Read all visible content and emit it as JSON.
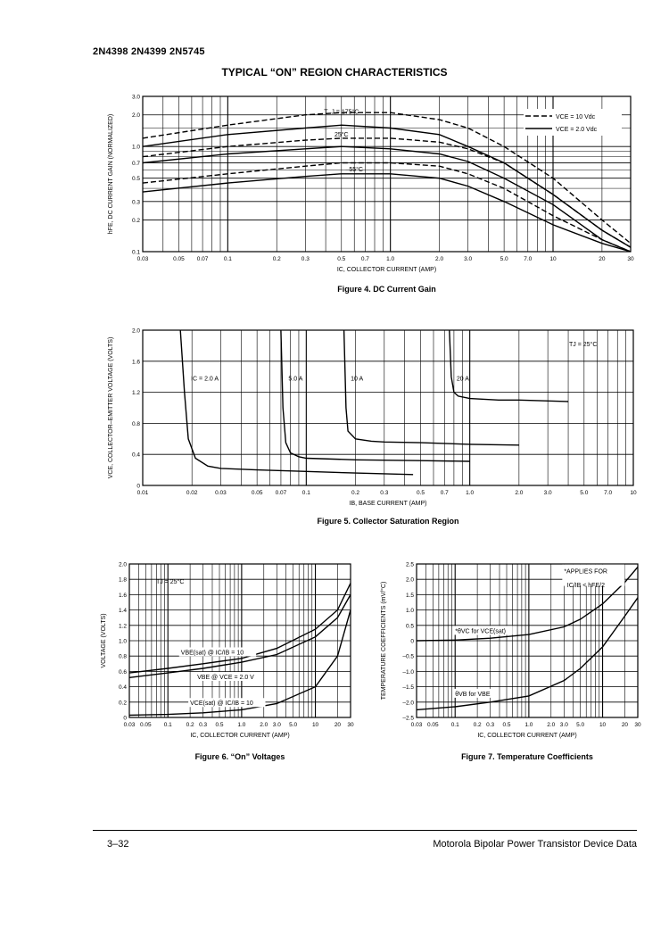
{
  "header": {
    "part_numbers": "2N4398 2N4399 2N5745"
  },
  "section_title": "TYPICAL “ON” REGION CHARACTERISTICS",
  "footer": {
    "page": "3–32",
    "publisher": "Motorola Bipolar Power Transistor Device Data"
  },
  "chart_data": [
    {
      "id": "fig4",
      "type": "line",
      "caption": "Figure 4. DC Current Gain",
      "xlabel": "I_C, COLLECTOR CURRENT (AMP)",
      "ylabel": "h_FE, DC CURRENT GAIN (NORMALIZED)",
      "xscale": "log",
      "yscale": "log",
      "xlim": [
        0.03,
        30
      ],
      "ylim": [
        0.1,
        3.0
      ],
      "xticks": [
        "0.03",
        "0.05",
        "0.07",
        "0.1",
        "0.2",
        "0.3",
        "0.5",
        "0.7",
        "1.0",
        "2.0",
        "3.0",
        "5.0",
        "7.0",
        "10",
        "20",
        "30"
      ],
      "yticks": [
        "0.1",
        "0.2",
        "0.3",
        "0.5",
        "0.7",
        "1.0",
        "2.0",
        "3.0"
      ],
      "legend": [
        "V_CE = 10 Vdc",
        "V_CE = 2.0 Vdc"
      ],
      "annotations": [
        "T_J = 175°C",
        "25°C",
        "–55°C"
      ],
      "series": [
        {
          "name": "T_J = 175°C, V_CE = 10 Vdc",
          "dash": true,
          "x": [
            0.03,
            0.1,
            0.3,
            0.5,
            1,
            2,
            3,
            5,
            10,
            20,
            30
          ],
          "y": [
            1.2,
            1.6,
            2.0,
            2.1,
            2.1,
            1.8,
            1.5,
            1.0,
            0.5,
            0.2,
            0.12
          ]
        },
        {
          "name": "T_J = 175°C, V_CE = 2.0 Vdc",
          "dash": false,
          "x": [
            0.03,
            0.1,
            0.3,
            0.5,
            1,
            2,
            3,
            5,
            10,
            20,
            30
          ],
          "y": [
            1.0,
            1.3,
            1.5,
            1.6,
            1.5,
            1.3,
            1.0,
            0.7,
            0.35,
            0.16,
            0.11
          ]
        },
        {
          "name": "T_J = 25°C, V_CE = 10 Vdc",
          "dash": true,
          "x": [
            0.03,
            0.1,
            0.3,
            0.5,
            1,
            2,
            3,
            5,
            10,
            20,
            30
          ],
          "y": [
            0.8,
            1.0,
            1.15,
            1.2,
            1.2,
            1.1,
            0.95,
            0.7,
            0.35,
            0.16,
            0.11
          ]
        },
        {
          "name": "T_J = 25°C, V_CE = 2.0 Vdc",
          "dash": false,
          "x": [
            0.03,
            0.1,
            0.3,
            0.5,
            1,
            2,
            3,
            5,
            10,
            20,
            30
          ],
          "y": [
            0.7,
            0.85,
            0.95,
            1.0,
            0.95,
            0.85,
            0.72,
            0.5,
            0.28,
            0.13,
            0.1
          ]
        },
        {
          "name": "T_J = –55°C, V_CE = 10 Vdc",
          "dash": true,
          "x": [
            0.03,
            0.1,
            0.3,
            0.5,
            1,
            2,
            3,
            5,
            10,
            20,
            30
          ],
          "y": [
            0.45,
            0.55,
            0.65,
            0.7,
            0.7,
            0.65,
            0.55,
            0.4,
            0.22,
            0.13,
            0.1
          ]
        },
        {
          "name": "T_J = –55°C, V_CE = 2.0 Vdc",
          "dash": false,
          "x": [
            0.03,
            0.1,
            0.3,
            0.5,
            1,
            2,
            3,
            5,
            10,
            20,
            30
          ],
          "y": [
            0.37,
            0.45,
            0.52,
            0.55,
            0.55,
            0.5,
            0.42,
            0.3,
            0.18,
            0.12,
            0.1
          ]
        }
      ]
    },
    {
      "id": "fig5",
      "type": "line",
      "caption": "Figure 5. Collector Saturation Region",
      "xlabel": "I_B, BASE CURRENT (AMP)",
      "ylabel": "V_CE, COLLECTOR–EMITTER VOLTAGE (VOLTS)",
      "xscale": "log",
      "yscale": "linear",
      "xlim": [
        0.01,
        10
      ],
      "ylim": [
        0,
        2.0
      ],
      "xticks": [
        "0.01",
        "0.02",
        "0.03",
        "0.05",
        "0.07",
        "0.1",
        "0.2",
        "0.3",
        "0.5",
        "0.7",
        "1.0",
        "2.0",
        "3.0",
        "5.0",
        "7.0",
        "10"
      ],
      "yticks": [
        "0",
        "0.4",
        "0.8",
        "1.2",
        "1.6",
        "2.0"
      ],
      "annotations": [
        "T_J = 25°C"
      ],
      "series": [
        {
          "name": "I_C = 2.0 A",
          "x": [
            0.017,
            0.018,
            0.019,
            0.021,
            0.025,
            0.03,
            0.05,
            0.1,
            0.2,
            0.45
          ],
          "y": [
            2.0,
            1.2,
            0.6,
            0.35,
            0.25,
            0.22,
            0.2,
            0.18,
            0.16,
            0.14
          ]
        },
        {
          "name": "5.0 A",
          "x": [
            0.07,
            0.072,
            0.075,
            0.08,
            0.09,
            0.1,
            0.2,
            0.5,
            1.0
          ],
          "y": [
            2.0,
            1.0,
            0.55,
            0.42,
            0.37,
            0.35,
            0.33,
            0.32,
            0.31
          ]
        },
        {
          "name": "10 A",
          "x": [
            0.17,
            0.175,
            0.18,
            0.2,
            0.25,
            0.3,
            0.5,
            1.0,
            2.0
          ],
          "y": [
            2.0,
            1.0,
            0.7,
            0.6,
            0.57,
            0.56,
            0.55,
            0.53,
            0.52
          ]
        },
        {
          "name": "20 A",
          "x": [
            0.75,
            0.77,
            0.8,
            0.85,
            1.0,
            1.5,
            2.0,
            4.0
          ],
          "y": [
            2.0,
            1.4,
            1.2,
            1.15,
            1.12,
            1.1,
            1.1,
            1.08
          ]
        }
      ]
    },
    {
      "id": "fig6",
      "type": "line",
      "caption": "Figure 6. “On” Voltages",
      "xlabel": "I_C, COLLECTOR CURRENT (AMP)",
      "ylabel": "VOLTAGE (VOLTS)",
      "xscale": "log",
      "yscale": "linear",
      "xlim": [
        0.03,
        30
      ],
      "ylim": [
        0,
        2.0
      ],
      "xticks": [
        "0.03",
        "0.05",
        "0.1",
        "0.2",
        "0.3",
        "0.5",
        "1.0",
        "2.0",
        "3.0",
        "5.0",
        "10",
        "20",
        "30"
      ],
      "yticks": [
        "0",
        "0.2",
        "0.4",
        "0.6",
        "0.8",
        "1.0",
        "1.2",
        "1.4",
        "1.6",
        "1.8",
        "2.0"
      ],
      "annotations": [
        "T_J = 25°C"
      ],
      "series": [
        {
          "name": "V_BE(sat) @ I_C/I_B = 10",
          "x": [
            0.03,
            0.1,
            0.3,
            1,
            3,
            10,
            20,
            30
          ],
          "y": [
            0.58,
            0.64,
            0.7,
            0.77,
            0.9,
            1.15,
            1.4,
            1.75
          ]
        },
        {
          "name": "V_BE @ V_CE = 2.0 V",
          "x": [
            0.03,
            0.1,
            0.3,
            1,
            3,
            10,
            20,
            30
          ],
          "y": [
            0.52,
            0.58,
            0.64,
            0.72,
            0.82,
            1.05,
            1.3,
            1.6
          ]
        },
        {
          "name": "V_CE(sat) @ I_C/I_B = 10",
          "x": [
            0.03,
            0.1,
            0.3,
            1,
            3,
            10,
            20,
            30
          ],
          "y": [
            0.03,
            0.04,
            0.06,
            0.1,
            0.18,
            0.4,
            0.8,
            1.4
          ]
        }
      ]
    },
    {
      "id": "fig7",
      "type": "line",
      "caption": "Figure 7. Temperature Coefficients",
      "xlabel": "I_C, COLLECTOR CURRENT (AMP)",
      "ylabel": "TEMPERATURE COEFFICIENTS (mV/°C)",
      "xscale": "log",
      "yscale": "linear",
      "xlim": [
        0.03,
        30
      ],
      "ylim": [
        -2.5,
        2.5
      ],
      "xticks": [
        "0.03",
        "0.05",
        "0.1",
        "0.2",
        "0.3",
        "0.5",
        "1.0",
        "2.0",
        "3.0",
        "5.0",
        "10",
        "20",
        "30"
      ],
      "yticks": [
        "–2.5",
        "–2.0",
        "–1.5",
        "–1.0",
        "–0.5",
        "0",
        "0.5",
        "1.0",
        "1.5",
        "2.0",
        "2.5"
      ],
      "annotations": [
        "*APPLIES FOR",
        "I_C/I_B < h_FE/2"
      ],
      "series": [
        {
          "name": "*θ_VC for V_CE(sat)",
          "x": [
            0.03,
            0.1,
            0.3,
            1,
            3,
            5,
            10,
            20,
            30
          ],
          "y": [
            0.0,
            0.02,
            0.08,
            0.2,
            0.45,
            0.7,
            1.2,
            1.9,
            2.4
          ]
        },
        {
          "name": "θ_VB for V_BE",
          "x": [
            0.03,
            0.1,
            0.3,
            1,
            3,
            5,
            10,
            20,
            30
          ],
          "y": [
            -2.25,
            -2.15,
            -2.0,
            -1.8,
            -1.3,
            -0.9,
            -0.2,
            0.8,
            1.4
          ]
        }
      ]
    }
  ]
}
